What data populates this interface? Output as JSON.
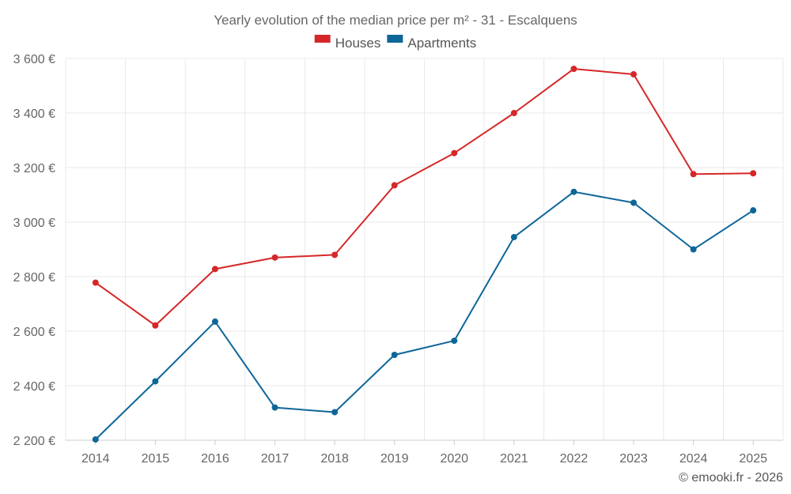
{
  "chart_data": {
    "type": "line",
    "title": "Yearly evolution of the median price per m² - 31 - Escalquens",
    "categories": [
      "2014",
      "2015",
      "2016",
      "2017",
      "2018",
      "2019",
      "2020",
      "2021",
      "2022",
      "2023",
      "2024",
      "2025"
    ],
    "series": [
      {
        "name": "Houses",
        "color": "#d62728",
        "values": [
          2778,
          2621,
          2828,
          2870,
          2880,
          3135,
          3253,
          3400,
          3562,
          3542,
          3176,
          3179
        ]
      },
      {
        "name": "Apartments",
        "color": "#0e6698",
        "values": [
          2203,
          2416,
          2635,
          2320,
          2303,
          2513,
          2565,
          2945,
          3111,
          3071,
          2900,
          3043
        ]
      }
    ],
    "ylim": [
      2200,
      3600
    ],
    "yticks": [
      2200,
      2400,
      2600,
      2800,
      3000,
      3200,
      3400,
      3600
    ],
    "ytick_labels": [
      "2 200 €",
      "2 400 €",
      "2 600 €",
      "2 800 €",
      "3 000 €",
      "3 200 €",
      "3 400 €",
      "3 600 €"
    ],
    "xlabel": "",
    "ylabel": "",
    "grid": true,
    "legend_position": "top-center"
  },
  "credit": "© emooki.fr - 2026"
}
